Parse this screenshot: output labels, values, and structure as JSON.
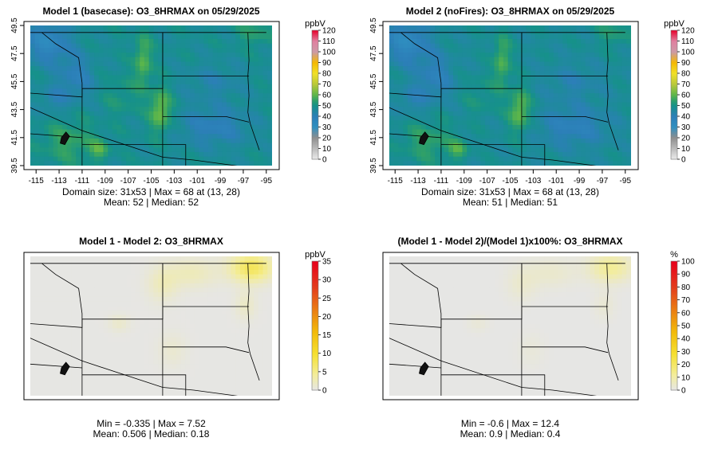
{
  "chart_data": [
    {
      "type": "heatmap",
      "title": "Model 1 (basecase): O3_8HRMAX on 05/29/2025",
      "xlabel": "",
      "ylabel": "",
      "xlim": [
        -115.5,
        -94.5
      ],
      "ylim": [
        39.5,
        49.5
      ],
      "x_ticks": [
        "-115",
        "-113",
        "-111",
        "-109",
        "-107",
        "-105",
        "-103",
        "-101",
        "-99",
        "-97",
        "-95"
      ],
      "y_ticks": [
        "39.5",
        "41.5",
        "43.5",
        "45.5",
        "47.5",
        "49.5"
      ],
      "colorbar": {
        "unit": "ppbV",
        "min": 0,
        "max": 120,
        "ticks": [
          "0",
          "10",
          "20",
          "30",
          "40",
          "50",
          "60",
          "70",
          "80",
          "90",
          "100",
          "110",
          "120"
        ]
      },
      "palette": "ozone",
      "field": {
        "variant": "base",
        "scale": 1.0
      },
      "stats": {
        "line1": "Domain size: 31x53 | Max = 68 at (13, 28)",
        "line2": "Mean: 52 |  Median: 52"
      }
    },
    {
      "type": "heatmap",
      "title": "Model 2 (noFires): O3_8HRMAX on 05/29/2025",
      "xlabel": "",
      "ylabel": "",
      "xlim": [
        -115.5,
        -94.5
      ],
      "ylim": [
        39.5,
        49.5
      ],
      "x_ticks": [
        "-115",
        "-113",
        "-111",
        "-109",
        "-107",
        "-105",
        "-103",
        "-101",
        "-99",
        "-97",
        "-95"
      ],
      "y_ticks": [
        "39.5",
        "41.5",
        "43.5",
        "45.5",
        "47.5",
        "49.5"
      ],
      "colorbar": {
        "unit": "ppbV",
        "min": 0,
        "max": 120,
        "ticks": [
          "0",
          "10",
          "20",
          "30",
          "40",
          "50",
          "60",
          "70",
          "80",
          "90",
          "100",
          "110",
          "120"
        ]
      },
      "palette": "ozone",
      "field": {
        "variant": "base",
        "scale": 0.985
      },
      "stats": {
        "line1": "Domain size: 31x53 | Max = 68 at (13, 28)",
        "line2": "Mean: 51 |  Median: 51"
      }
    },
    {
      "type": "heatmap",
      "title": "Model 1 - Model 2: O3_8HRMAX",
      "xlabel": "",
      "ylabel": "",
      "xlim": [
        -115.5,
        -94.5
      ],
      "ylim": [
        39.5,
        49.5
      ],
      "colorbar": {
        "unit": "ppbV",
        "min": 0,
        "max": 35,
        "ticks": [
          "0",
          "5",
          "10",
          "15",
          "20",
          "25",
          "30",
          "35"
        ]
      },
      "palette": "diff",
      "field": {
        "variant": "diff",
        "max": 7.52
      },
      "stats": {
        "line1": "Min = -0.335 | Max = 7.52",
        "line2": "Mean: 0.506 |  Median: 0.18"
      }
    },
    {
      "type": "heatmap",
      "title": "(Model 1 - Model 2)/(Model 1)x100%: O3_8HRMAX",
      "xlabel": "",
      "ylabel": "",
      "xlim": [
        -115.5,
        -94.5
      ],
      "ylim": [
        39.5,
        49.5
      ],
      "colorbar": {
        "unit": "%",
        "min": 0,
        "max": 100,
        "ticks": [
          "0",
          "10",
          "20",
          "30",
          "40",
          "50",
          "60",
          "70",
          "80",
          "90",
          "100"
        ]
      },
      "palette": "diff",
      "field": {
        "variant": "diff",
        "max": 12.4
      },
      "stats": {
        "line1": "Min = -0.6 | Max = 12.4",
        "line2": "Mean: 0.9 |  Median: 0.4"
      }
    }
  ]
}
